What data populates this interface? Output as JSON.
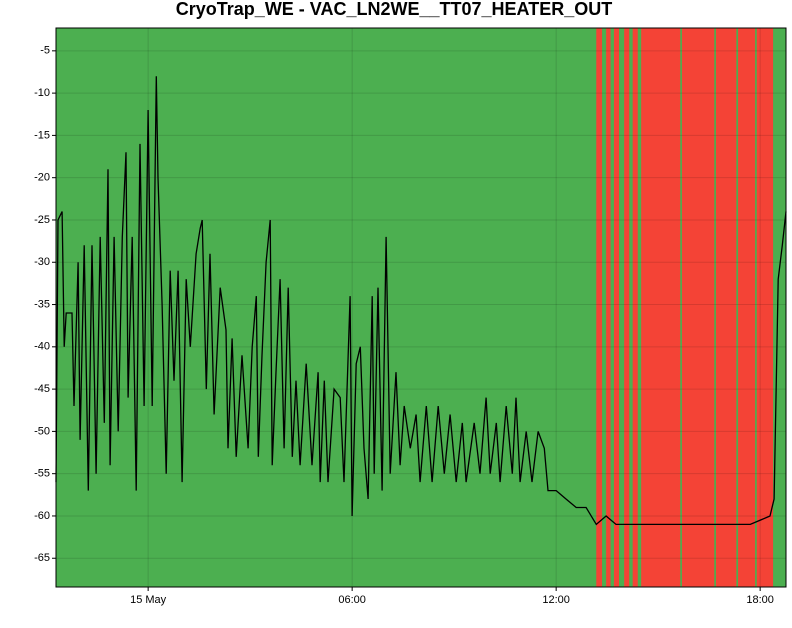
{
  "chart_data": {
    "type": "line",
    "title": "CryoTrap_WE - VAC_LN2WE__TT07_HEATER_OUT",
    "background": "#4caf50",
    "band_color": "#f44336",
    "bands": [
      {
        "start": 13.18,
        "end": 13.35
      },
      {
        "start": 13.47,
        "end": 13.6
      },
      {
        "start": 13.7,
        "end": 13.85
      },
      {
        "start": 14.0,
        "end": 14.15
      },
      {
        "start": 14.25,
        "end": 14.4
      },
      {
        "start": 14.5,
        "end": 15.65
      },
      {
        "start": 15.7,
        "end": 16.65
      },
      {
        "start": 16.7,
        "end": 17.3
      },
      {
        "start": 17.35,
        "end": 17.85
      },
      {
        "start": 17.9,
        "end": 18.38
      }
    ],
    "x": [
      -2.71,
      -2.65,
      -2.53,
      -2.47,
      -2.41,
      -2.24,
      -2.18,
      -2.06,
      -2.0,
      -1.88,
      -1.76,
      -1.65,
      -1.53,
      -1.41,
      -1.29,
      -1.18,
      -1.12,
      -1.0,
      -0.88,
      -0.76,
      -0.65,
      -0.59,
      -0.47,
      -0.35,
      -0.24,
      -0.12,
      0,
      0.12,
      0.24,
      0.29,
      0.41,
      0.53,
      0.65,
      0.76,
      0.88,
      1.0,
      1.12,
      1.24,
      1.41,
      1.53,
      1.59,
      1.71,
      1.82,
      1.94,
      2.12,
      2.29,
      2.35,
      2.47,
      2.59,
      2.76,
      2.94,
      3.06,
      3.18,
      3.24,
      3.35,
      3.47,
      3.59,
      3.65,
      3.76,
      3.88,
      4.0,
      4.12,
      4.24,
      4.35,
      4.47,
      4.65,
      4.82,
      5.0,
      5.06,
      5.18,
      5.29,
      5.47,
      5.65,
      5.76,
      5.94,
      6.0,
      6.12,
      6.24,
      6.35,
      6.47,
      6.59,
      6.65,
      6.76,
      6.88,
      7.0,
      7.12,
      7.29,
      7.41,
      7.53,
      7.71,
      7.88,
      8.0,
      8.18,
      8.35,
      8.53,
      8.71,
      8.88,
      9.06,
      9.24,
      9.35,
      9.59,
      9.76,
      9.94,
      10.06,
      10.24,
      10.35,
      10.53,
      10.71,
      10.82,
      10.94,
      11.12,
      11.29,
      11.47,
      11.65,
      11.76,
      12.0,
      12.29,
      12.59,
      12.88,
      13.18,
      13.47,
      13.76,
      14.18,
      14.76,
      15.35,
      15.94,
      16.53,
      17.12,
      17.71,
      18.29,
      18.41,
      18.53,
      18.65,
      18.76
    ],
    "series": [
      {
        "color": "#000000",
        "values": [
          -56,
          -25,
          -24,
          -40,
          -36,
          -36,
          -47,
          -30,
          -51,
          -28,
          -57,
          -28,
          -55,
          -27,
          -49,
          -19,
          -54,
          -27,
          -50,
          -27,
          -17,
          -46,
          -27,
          -57,
          -16,
          -47,
          -12,
          -47,
          -8,
          -20,
          -35,
          -55,
          -31,
          -44,
          -31,
          -56,
          -32,
          -40,
          -29,
          -26,
          -25,
          -45,
          -29,
          -48,
          -33,
          -38,
          -52,
          -39,
          -53,
          -41,
          -52,
          -40,
          -34,
          -53,
          -41,
          -30,
          -25,
          -54,
          -43,
          -32,
          -52,
          -33,
          -53,
          -44,
          -54,
          -42,
          -54,
          -43,
          -56,
          -44,
          -56,
          -45,
          -46,
          -56,
          -34,
          -60,
          -42,
          -40,
          -52,
          -58,
          -34,
          -55,
          -33,
          -57,
          -27,
          -55,
          -43,
          -54,
          -47,
          -52,
          -48,
          -56,
          -47,
          -56,
          -47,
          -55,
          -48,
          -56,
          -49,
          -56,
          -49,
          -55,
          -46,
          -55,
          -49,
          -56,
          -47,
          -55,
          -46,
          -56,
          -50,
          -56,
          -50,
          -52,
          -57,
          -57,
          -58,
          -59,
          -59,
          -61,
          -60,
          -61,
          -61,
          -61,
          -61,
          -61,
          -61,
          -61,
          -61,
          -60,
          -58,
          -32,
          -28,
          -24
        ]
      }
    ],
    "xlim": [
      -2.71,
      18.76
    ],
    "xticks": [
      {
        "value": 0,
        "label": "15 May"
      },
      {
        "value": 6,
        "label": "06:00"
      },
      {
        "value": 12,
        "label": "12:00"
      },
      {
        "value": 18,
        "label": "18:00"
      }
    ],
    "ylim": [
      -68.4,
      -2.3
    ],
    "yticks": [
      -5,
      -10,
      -15,
      -20,
      -25,
      -30,
      -35,
      -40,
      -45,
      -50,
      -55,
      -60,
      -65
    ],
    "grid": true
  }
}
